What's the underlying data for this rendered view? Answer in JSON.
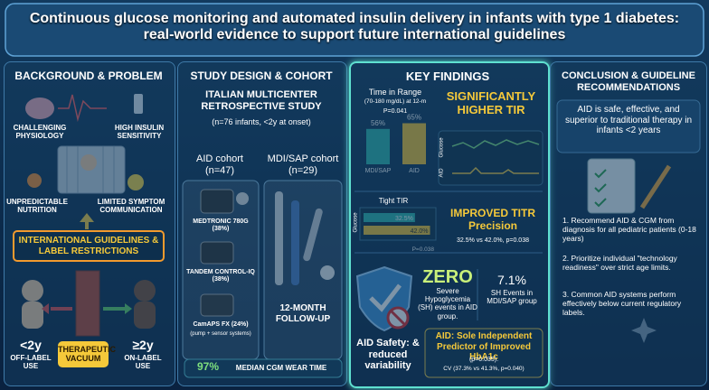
{
  "header": {
    "title": "Continuous glucose monitoring and automated insulin delivery in infants with type 1 diabetes: real-world evidence to support future international guidelines"
  },
  "background": {
    "heading": "BACKGROUND & PROBLEM",
    "factors": [
      "CHALLENGING PHYSIOLOGY",
      "HIGH INSULIN SENSITIVITY",
      "UNPREDICTABLE NUTRITION",
      "LIMITED SYMPTOM COMMUNICATION"
    ],
    "guidelines": "INTERNATIONAL GUIDELINES & LABEL RESTRICTIONS",
    "under_2": {
      "age": "<2y",
      "status": "OFF-LABEL USE"
    },
    "vacuum": "THERAPEUTIC VACUUM",
    "over_2": {
      "age": "≥2y",
      "status": "ON-LABEL USE"
    }
  },
  "study": {
    "heading": "STUDY DESIGN & COHORT",
    "design": "ITALIAN MULTICENTER RETROSPECTIVE STUDY",
    "sample": "(n=76 infants, <2y at onset)",
    "aid_cohort": "AID cohort (n=47)",
    "mdi_cohort": "MDI/SAP cohort (n=29)",
    "devices": [
      "MEDTRONIC 780G (38%)",
      "TANDEM CONTROL-IQ (38%)",
      "CamAPS FX (24%)"
    ],
    "device_note": "(pump + sensor systems)",
    "follow_up": "12-MONTH FOLLOW-UP",
    "wear_value": "97%",
    "wear_label": "MEDIAN CGM WEAR TIME"
  },
  "findings": {
    "heading": "KEY FINDINGS",
    "tir": {
      "title": "Time in Range",
      "subtitle": "(70-180 mg/dL) at 12-m",
      "p": "P=0.041",
      "categories": [
        "MDI/SAP",
        "AID"
      ],
      "values": [
        56,
        65
      ],
      "value_labels": [
        "56%",
        "65%"
      ],
      "colors": [
        "#2bb3a8",
        "#f2c12e"
      ]
    },
    "tir_headline": "SIGNIFICANTLY HIGHER TIR",
    "trace_labels": [
      "Glucose",
      "AID"
    ],
    "titr": {
      "title": "Tight TIR",
      "axis_label": "Glucose",
      "p": "P=0.038",
      "values": [
        32.5,
        42.0
      ],
      "value_labels": [
        "32.5%",
        "42.0%"
      ],
      "colors": [
        "#2bb3a8",
        "#f2c12e"
      ]
    },
    "titr_headline": "IMPROVED TITR Precision",
    "titr_summary": "32.5% vs 42.0%, p=0.038",
    "zero": "ZERO",
    "zero_text": "Severe Hypoglycemia (SH) events in AID group.",
    "sh_value": "7.1%",
    "sh_text": "SH Events in MDI/SAP group",
    "safety": "AID Safety: & reduced variability",
    "predictor": "AID: Sole Independent Predictor of Improved HbA1c",
    "predictor_p": "(p=0.035).",
    "cv": "CV (37.3% vs 41.3%, p=0.040)"
  },
  "conclusion": {
    "heading": "CONCLUSION & GUIDELINE RECOMMENDATIONS",
    "statement": "AID is safe, effective, and superior to traditional therapy in infants <2 years",
    "recommendations": [
      "1. Recommend AID & CGM from diagnosis for all pediatric patients (0-18 years)",
      "2. Prioritize individual \"technology readiness\" over strict age limits.",
      "3. Common AID systems perform effectively below current regulatory labels."
    ]
  }
}
